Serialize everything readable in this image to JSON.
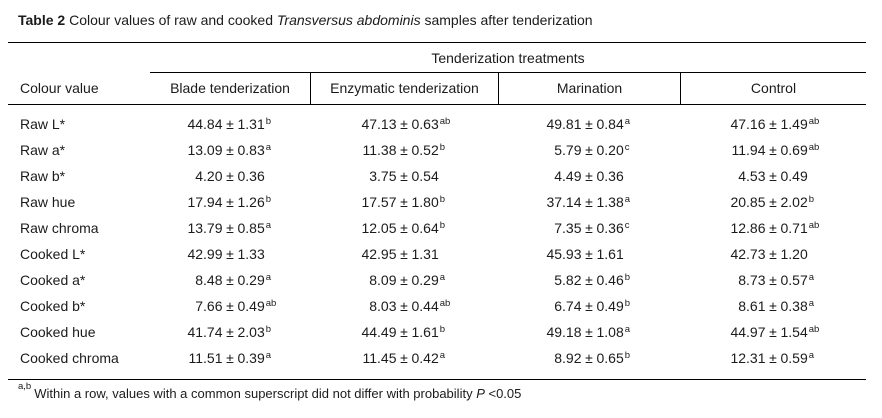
{
  "title": {
    "label": "Table 2",
    "text": "Colour values of raw and cooked",
    "species": "Transversus abdominis",
    "suffix": "samples after tenderization"
  },
  "table": {
    "group_header": "Tenderization treatments",
    "plus_minus": "±",
    "columns": {
      "col0": "Colour value",
      "col1": "Blade tenderization",
      "col2": "Enzymatic tenderization",
      "col3": "Marination",
      "col4": "Control"
    },
    "rows": [
      {
        "label": "Raw L*",
        "cells": [
          {
            "v": "44.84",
            "e": "1.31",
            "s": "b"
          },
          {
            "v": "47.13",
            "e": "0.63",
            "s": "ab"
          },
          {
            "v": "49.81",
            "e": "0.84",
            "s": "a"
          },
          {
            "v": "47.16",
            "e": "1.49",
            "s": "ab"
          }
        ]
      },
      {
        "label": "Raw a*",
        "cells": [
          {
            "v": "13.09",
            "e": "0.83",
            "s": "a"
          },
          {
            "v": "11.38",
            "e": "0.52",
            "s": "b"
          },
          {
            "v": "5.79",
            "e": "0.20",
            "s": "c"
          },
          {
            "v": "11.94",
            "e": "0.69",
            "s": "ab"
          }
        ]
      },
      {
        "label": "Raw b*",
        "cells": [
          {
            "v": "4.20",
            "e": "0.36",
            "s": ""
          },
          {
            "v": "3.75",
            "e": "0.54",
            "s": ""
          },
          {
            "v": "4.49",
            "e": "0.36",
            "s": ""
          },
          {
            "v": "4.53",
            "e": "0.49",
            "s": ""
          }
        ]
      },
      {
        "label": "Raw hue",
        "cells": [
          {
            "v": "17.94",
            "e": "1.26",
            "s": "b"
          },
          {
            "v": "17.57",
            "e": "1.80",
            "s": "b"
          },
          {
            "v": "37.14",
            "e": "1.38",
            "s": "a"
          },
          {
            "v": "20.85",
            "e": "2.02",
            "s": "b"
          }
        ]
      },
      {
        "label": "Raw chroma",
        "cells": [
          {
            "v": "13.79",
            "e": "0.85",
            "s": "a"
          },
          {
            "v": "12.05",
            "e": "0.64",
            "s": "b"
          },
          {
            "v": "7.35",
            "e": "0.36",
            "s": "c"
          },
          {
            "v": "12.86",
            "e": "0.71",
            "s": "ab"
          }
        ]
      },
      {
        "label": "Cooked L*",
        "cells": [
          {
            "v": "42.99",
            "e": "1.33",
            "s": ""
          },
          {
            "v": "42.95",
            "e": "1.31",
            "s": ""
          },
          {
            "v": "45.93",
            "e": "1.61",
            "s": ""
          },
          {
            "v": "42.73",
            "e": "1.20",
            "s": ""
          }
        ]
      },
      {
        "label": "Cooked a*",
        "cells": [
          {
            "v": "8.48",
            "e": "0.29",
            "s": "a"
          },
          {
            "v": "8.09",
            "e": "0.29",
            "s": "a"
          },
          {
            "v": "5.82",
            "e": "0.46",
            "s": "b"
          },
          {
            "v": "8.73",
            "e": "0.57",
            "s": "a"
          }
        ]
      },
      {
        "label": "Cooked b*",
        "cells": [
          {
            "v": "7.66",
            "e": "0.49",
            "s": "ab"
          },
          {
            "v": "8.03",
            "e": "0.44",
            "s": "ab"
          },
          {
            "v": "6.74",
            "e": "0.49",
            "s": "b"
          },
          {
            "v": "8.61",
            "e": "0.38",
            "s": "a"
          }
        ]
      },
      {
        "label": "Cooked hue",
        "cells": [
          {
            "v": "41.74",
            "e": "2.03",
            "s": "b"
          },
          {
            "v": "44.49",
            "e": "1.61",
            "s": "b"
          },
          {
            "v": "49.18",
            "e": "1.08",
            "s": "a"
          },
          {
            "v": "44.97",
            "e": "1.54",
            "s": "ab"
          }
        ]
      },
      {
        "label": "Cooked chroma",
        "cells": [
          {
            "v": "11.51",
            "e": "0.39",
            "s": "a"
          },
          {
            "v": "11.45",
            "e": "0.42",
            "s": "a"
          },
          {
            "v": "8.92",
            "e": "0.65",
            "s": "b"
          },
          {
            "v": "12.31",
            "e": "0.59",
            "s": "a"
          }
        ]
      }
    ]
  },
  "footnote": {
    "sup": "a,b",
    "text": "Within a row, values with a common superscript did not differ with probability",
    "p": "P",
    "value": "<0.05"
  },
  "colors": {
    "text": "#1b1b1b",
    "rule": "#000000",
    "background": "#ffffff"
  }
}
